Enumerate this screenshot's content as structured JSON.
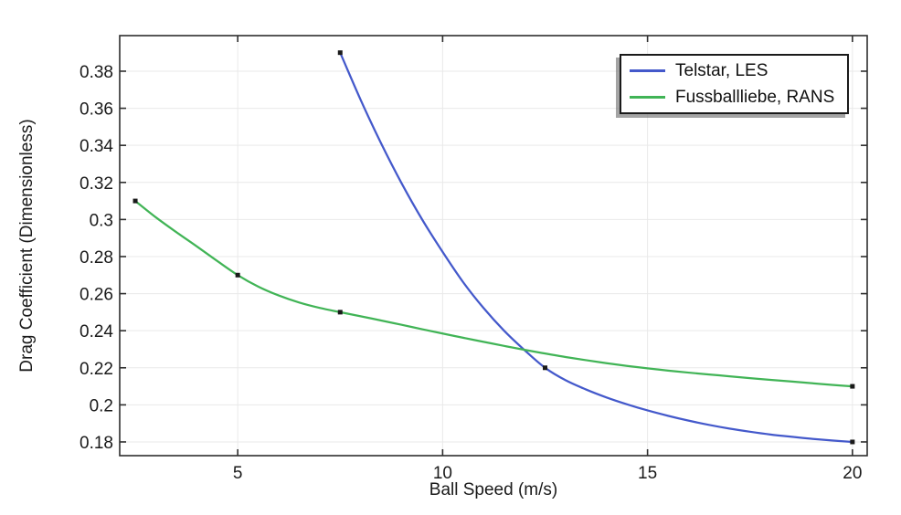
{
  "chart_data": {
    "type": "line",
    "title": "",
    "xlabel": "Ball Speed (m/s)",
    "ylabel": "Drag Coefficient (Dimensionless)",
    "xlim": [
      2.12,
      20.36
    ],
    "ylim": [
      0.1726,
      0.3992
    ],
    "x_ticks": [
      5,
      10,
      15,
      20
    ],
    "x_tick_labels": [
      "5",
      "10",
      "15",
      "20"
    ],
    "y_ticks": [
      0.18,
      0.2,
      0.22,
      0.24,
      0.26,
      0.28,
      0.3,
      0.32,
      0.34,
      0.36,
      0.38
    ],
    "y_tick_labels": [
      "0.18",
      "0.2",
      "0.22",
      "0.24",
      "0.26",
      "0.28",
      "0.3",
      "0.32",
      "0.34",
      "0.36",
      "0.38"
    ],
    "grid": true,
    "legend_position": "top-right",
    "background": "#ffffff",
    "axis_color": "#2e2e2e",
    "grid_color": "#e9e9e9",
    "text_color": "#1a1a1a",
    "series": [
      {
        "name": "Telstar, LES",
        "color": "#4459cb",
        "marker": "square",
        "marker_color": "#1a1a1a",
        "data_points": [
          [
            7.5,
            0.39
          ],
          [
            12.5,
            0.22
          ],
          [
            20,
            0.18
          ]
        ],
        "curve": [
          [
            7.5,
            0.39
          ],
          [
            8,
            0.3645
          ],
          [
            8.5,
            0.341
          ],
          [
            9,
            0.3195
          ],
          [
            9.5,
            0.3
          ],
          [
            10,
            0.2825
          ],
          [
            10.5,
            0.2662
          ],
          [
            11,
            0.2522
          ],
          [
            11.5,
            0.24
          ],
          [
            12,
            0.2295
          ],
          [
            12.5,
            0.22
          ],
          [
            13,
            0.2133
          ],
          [
            13.5,
            0.2083
          ],
          [
            14,
            0.204
          ],
          [
            14.5,
            0.2003
          ],
          [
            15,
            0.197
          ],
          [
            15.5,
            0.1941
          ],
          [
            16,
            0.1915
          ],
          [
            16.5,
            0.1892
          ],
          [
            17,
            0.1872
          ],
          [
            17.5,
            0.1855
          ],
          [
            18,
            0.184
          ],
          [
            18.5,
            0.1828
          ],
          [
            19,
            0.1817
          ],
          [
            19.5,
            0.1808
          ],
          [
            20,
            0.18
          ]
        ]
      },
      {
        "name": "Fussballliebe, RANS",
        "color": "#41b456",
        "marker": "square",
        "marker_color": "#1a1a1a",
        "data_points": [
          [
            2.5,
            0.31
          ],
          [
            5,
            0.27
          ],
          [
            7.5,
            0.25
          ],
          [
            20,
            0.21
          ]
        ],
        "curve": [
          [
            2.5,
            0.31
          ],
          [
            3,
            0.3012
          ],
          [
            3.5,
            0.2932
          ],
          [
            4,
            0.2855
          ],
          [
            4.5,
            0.2776
          ],
          [
            5,
            0.27
          ],
          [
            5.5,
            0.2638
          ],
          [
            6,
            0.259
          ],
          [
            6.5,
            0.2552
          ],
          [
            7,
            0.2523
          ],
          [
            7.5,
            0.25
          ],
          [
            8,
            0.2478
          ],
          [
            8.5,
            0.2455
          ],
          [
            9,
            0.2432
          ],
          [
            9.5,
            0.2408
          ],
          [
            10,
            0.2385
          ],
          [
            10.5,
            0.2362
          ],
          [
            11,
            0.234
          ],
          [
            11.5,
            0.2318
          ],
          [
            12,
            0.2297
          ],
          [
            12.5,
            0.2277
          ],
          [
            13,
            0.2258
          ],
          [
            13.5,
            0.2241
          ],
          [
            14,
            0.2225
          ],
          [
            14.5,
            0.221
          ],
          [
            15,
            0.2197
          ],
          [
            15.5,
            0.2185
          ],
          [
            16,
            0.2174
          ],
          [
            16.5,
            0.2164
          ],
          [
            17,
            0.2154
          ],
          [
            17.5,
            0.2144
          ],
          [
            18,
            0.2135
          ],
          [
            18.5,
            0.2126
          ],
          [
            19,
            0.2117
          ],
          [
            19.5,
            0.2108
          ],
          [
            20,
            0.21
          ]
        ]
      }
    ]
  }
}
